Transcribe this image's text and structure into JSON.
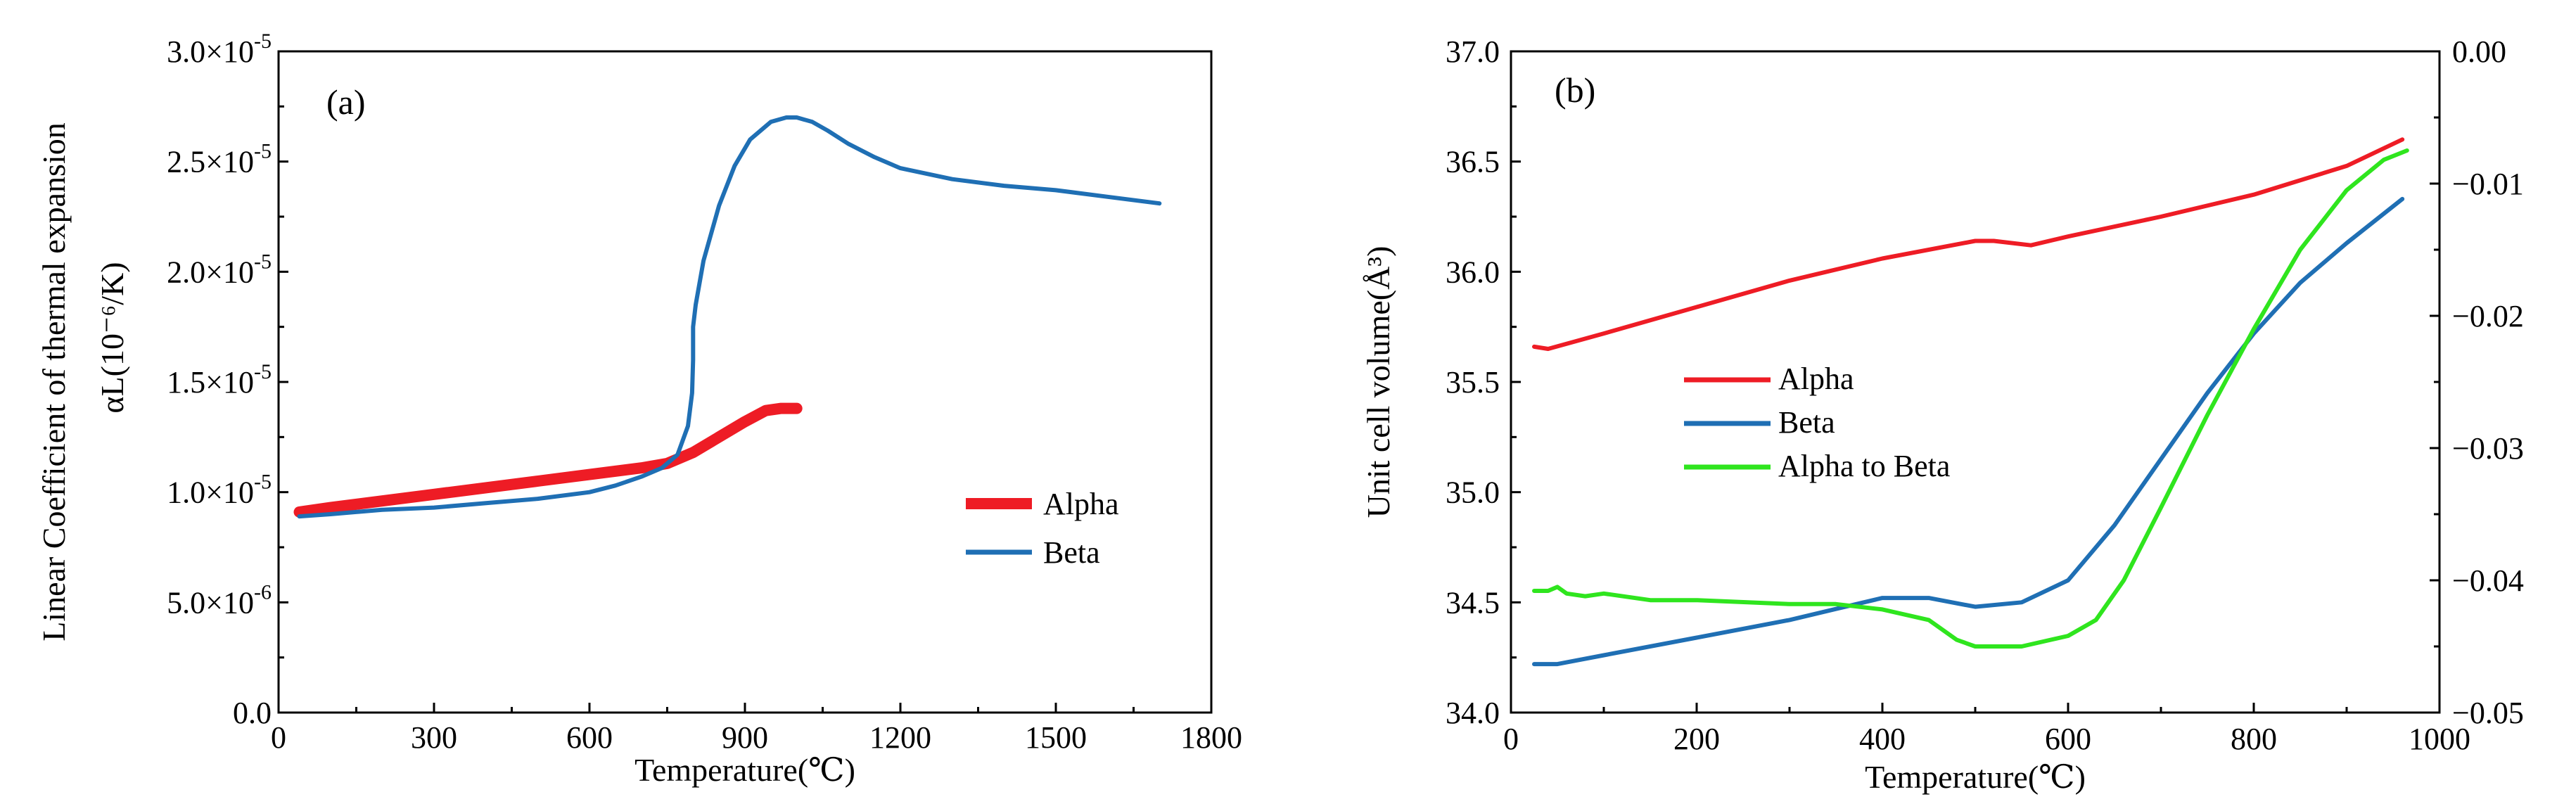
{
  "chart_data": [
    {
      "type": "line",
      "panel_label": "(a)",
      "xlabel": "Temperature(℃)",
      "ylabel": "Linear Coefficient of thermal expansion",
      "ylabel_sub": "αL(10⁻⁶/K)",
      "xlim": [
        0,
        1800
      ],
      "ylim": [
        0,
        3e-05
      ],
      "xticks": [
        0,
        300,
        600,
        900,
        1200,
        1500,
        1800
      ],
      "xtick_labels": [
        "0",
        "300",
        "600",
        "900",
        "1200",
        "1500",
        "1800"
      ],
      "yticks": [
        0,
        5e-06,
        1e-05,
        1.5e-05,
        2e-05,
        2.5e-05,
        3e-05
      ],
      "ytick_labels": [
        {
          "mant": "0.0",
          "exp": ""
        },
        {
          "mant": "5.0×10",
          "exp": "-6"
        },
        {
          "mant": "1.0×10",
          "exp": "-5"
        },
        {
          "mant": "1.5×10",
          "exp": "-5"
        },
        {
          "mant": "2.0×10",
          "exp": "-5"
        },
        {
          "mant": "2.5×10",
          "exp": "-5"
        },
        {
          "mant": "3.0×10",
          "exp": "-5"
        }
      ],
      "legend_position": "lower-right",
      "series": [
        {
          "name": "Alpha",
          "color": "#ee1c25",
          "width": "thick",
          "x": [
            40,
            100,
            200,
            300,
            400,
            500,
            600,
            700,
            750,
            800,
            850,
            900,
            940,
            970,
            1000
          ],
          "y": [
            9.1e-06,
            9.3e-06,
            9.6e-06,
            9.9e-06,
            1.02e-05,
            1.05e-05,
            1.08e-05,
            1.11e-05,
            1.13e-05,
            1.18e-05,
            1.25e-05,
            1.32e-05,
            1.37e-05,
            1.38e-05,
            1.38e-05
          ]
        },
        {
          "name": "Beta",
          "color": "#1f6fb4",
          "width": "thin",
          "x": [
            40,
            100,
            200,
            300,
            400,
            500,
            600,
            650,
            700,
            740,
            770,
            790,
            798,
            800,
            800,
            805,
            820,
            850,
            880,
            910,
            950,
            980,
            1000,
            1030,
            1060,
            1100,
            1150,
            1200,
            1300,
            1400,
            1500,
            1600,
            1700
          ],
          "y": [
            8.9e-06,
            9e-06,
            9.2e-06,
            9.3e-06,
            9.5e-06,
            9.7e-06,
            1e-05,
            1.03e-05,
            1.07e-05,
            1.11e-05,
            1.17e-05,
            1.3e-05,
            1.45e-05,
            1.6e-05,
            1.75e-05,
            1.85e-05,
            2.05e-05,
            2.3e-05,
            2.48e-05,
            2.6e-05,
            2.68e-05,
            2.7e-05,
            2.7e-05,
            2.68e-05,
            2.64e-05,
            2.58e-05,
            2.52e-05,
            2.47e-05,
            2.42e-05,
            2.39e-05,
            2.37e-05,
            2.34e-05,
            2.31e-05
          ]
        }
      ]
    },
    {
      "type": "line",
      "panel_label": "(b)",
      "xlabel": "Temperature(℃)",
      "ylabel": "Unit cell volume(Å³)",
      "xlim": [
        0,
        1000
      ],
      "ylim": [
        34.0,
        37.0
      ],
      "y2lim": [
        -0.05,
        0.0
      ],
      "xticks": [
        0,
        200,
        400,
        600,
        800,
        1000
      ],
      "xtick_labels": [
        "0",
        "200",
        "400",
        "600",
        "800",
        "1000"
      ],
      "yticks": [
        34.0,
        34.5,
        35.0,
        35.5,
        36.0,
        36.5,
        37.0
      ],
      "ytick_labels": [
        "34.0",
        "34.5",
        "35.0",
        "35.5",
        "36.0",
        "36.5",
        "37.0"
      ],
      "y2ticks": [
        -0.05,
        -0.04,
        -0.03,
        -0.02,
        -0.01,
        0.0
      ],
      "y2tick_labels": [
        "−0.05",
        "−0.04",
        "−0.03",
        "−0.02",
        "−0.01",
        "0.00"
      ],
      "legend_position": "center-left",
      "series": [
        {
          "name": "Alpha",
          "color": "#ee1c25",
          "axis": "left",
          "x": [
            25,
            40,
            100,
            200,
            300,
            400,
            500,
            520,
            560,
            600,
            700,
            800,
            900,
            960
          ],
          "y": [
            35.66,
            35.65,
            35.72,
            35.84,
            35.96,
            36.06,
            36.14,
            36.14,
            36.12,
            36.16,
            36.25,
            36.35,
            36.48,
            36.6
          ]
        },
        {
          "name": "Beta",
          "color": "#1f6fb4",
          "axis": "left",
          "x": [
            25,
            50,
            100,
            200,
            300,
            350,
            400,
            450,
            500,
            550,
            600,
            650,
            700,
            750,
            800,
            850,
            900,
            960
          ],
          "y": [
            34.22,
            34.22,
            34.26,
            34.34,
            34.42,
            34.47,
            34.52,
            34.52,
            34.48,
            34.5,
            34.6,
            34.85,
            35.15,
            35.45,
            35.72,
            35.95,
            36.13,
            36.33
          ]
        },
        {
          "name": "Alpha to Beta",
          "color": "#2fe51e",
          "axis": "right",
          "x": [
            25,
            40,
            50,
            60,
            80,
            100,
            150,
            200,
            300,
            350,
            400,
            450,
            480,
            500,
            550,
            600,
            630,
            660,
            700,
            750,
            800,
            850,
            900,
            940,
            965
          ],
          "y": [
            -0.0408,
            -0.0408,
            -0.0405,
            -0.041,
            -0.0412,
            -0.041,
            -0.0415,
            -0.0415,
            -0.0418,
            -0.0418,
            -0.0422,
            -0.043,
            -0.0445,
            -0.045,
            -0.045,
            -0.0442,
            -0.043,
            -0.04,
            -0.0345,
            -0.0275,
            -0.021,
            -0.015,
            -0.0105,
            -0.0082,
            -0.0075
          ]
        }
      ]
    }
  ]
}
